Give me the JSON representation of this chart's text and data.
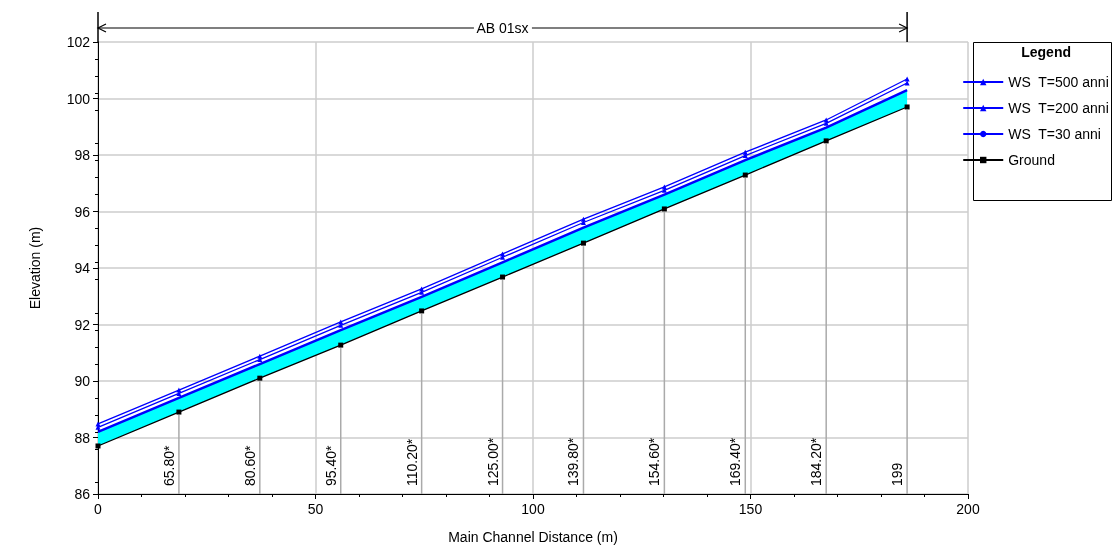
{
  "chart_data": {
    "type": "line",
    "xlabel": "Main Channel Distance (m)",
    "ylabel": "Elevation (m)",
    "legend_title": "Legend",
    "legend": "right",
    "grid": true,
    "x": [
      0,
      18.6,
      37.2,
      55.8,
      74.4,
      93,
      111.6,
      130.2,
      148.8,
      167.4,
      186
    ],
    "xlim": [
      0,
      200
    ],
    "xticks": [
      0,
      50,
      100,
      150,
      200
    ],
    "ylim": [
      86,
      102
    ],
    "yticks": [
      86,
      88,
      90,
      92,
      94,
      96,
      98,
      100,
      102
    ],
    "series": [
      {
        "name": "WS  T=500 anni",
        "color": "#0000ff",
        "marker": "triangle",
        "values": [
          88.48,
          89.68,
          90.88,
          92.09,
          93.26,
          94.5,
          95.73,
          96.87,
          98.1,
          99.24,
          100.69
        ]
      },
      {
        "name": "WS  T=200 anni",
        "color": "#0000ff",
        "marker": "triangle",
        "values": [
          88.36,
          89.56,
          90.76,
          91.97,
          93.14,
          94.38,
          95.61,
          96.75,
          97.98,
          99.12,
          100.55
        ]
      },
      {
        "name": "WS  T=30 anni",
        "type": "area",
        "color": "#00ffff",
        "marker": "none",
        "values": [
          88.2,
          89.4,
          90.6,
          91.8,
          92.98,
          94.2,
          95.43,
          96.6,
          97.82,
          98.97,
          100.3
        ]
      },
      {
        "name": "Ground",
        "color": "#000000",
        "marker": "square",
        "values": [
          87.7,
          88.9,
          90.1,
          91.27,
          92.48,
          93.68,
          94.88,
          96.09,
          97.29,
          98.5,
          99.7
        ]
      }
    ],
    "annotations": [
      "AB 01sx",
      {
        "text": "65.80*",
        "x": 18.6,
        "y": 88.9
      },
      {
        "text": "80.60*",
        "x": 37.2,
        "y": 90.1
      },
      {
        "text": "95.40*",
        "x": 55.8,
        "y": 91.27
      },
      {
        "text": "110.20*",
        "x": 74.4,
        "y": 92.48
      },
      {
        "text": "125.00*",
        "x": 93,
        "y": 93.68
      },
      {
        "text": "139.80*",
        "x": 111.6,
        "y": 94.88
      },
      {
        "text": "154.60*",
        "x": 130.2,
        "y": 96.09
      },
      {
        "text": "169.40*",
        "x": 148.8,
        "y": 97.29
      },
      {
        "text": "184.20*",
        "x": 167.4,
        "y": 98.5
      },
      {
        "text": "199",
        "x": 186,
        "y": 99.7
      }
    ]
  }
}
